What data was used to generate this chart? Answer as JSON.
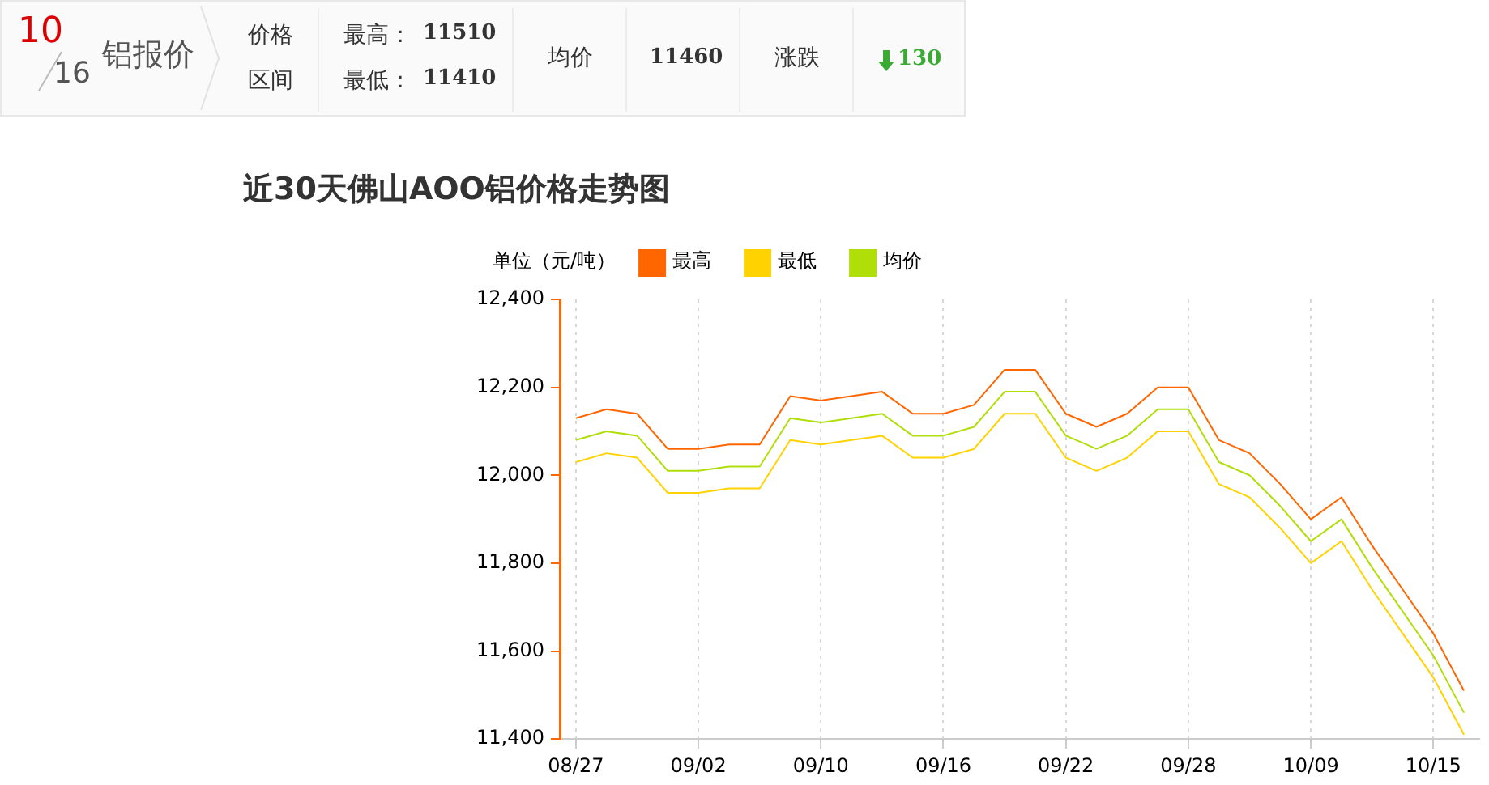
{
  "chart_data": {
    "type": "line",
    "title": "近30天佛山AOO铝价格走势图",
    "ylabel": "单位（元/吨）",
    "annotations": [
      "10",
      "16",
      "铝报价",
      "价格",
      "区间",
      "最高：",
      "11510",
      "最低：",
      "11410",
      "均价",
      "11460",
      "涨跌",
      "130"
    ],
    "categories": [
      "08/27",
      null,
      null,
      null,
      "09/02",
      null,
      null,
      null,
      "09/10",
      null,
      null,
      null,
      "09/16",
      null,
      null,
      null,
      "09/22",
      null,
      null,
      null,
      "09/28",
      null,
      null,
      null,
      "10/09",
      null,
      null,
      null,
      "10/15",
      null
    ],
    "series": [
      {
        "name": "最高",
        "color": "#ff6600",
        "values": [
          12130,
          12150,
          12140,
          12060,
          12060,
          12070,
          12070,
          12180,
          12170,
          12180,
          12190,
          12140,
          12140,
          12160,
          12240,
          12240,
          12140,
          12110,
          12140,
          12200,
          12200,
          12080,
          12050,
          11980,
          11900,
          11950,
          11840,
          11740,
          11640,
          11510
        ]
      },
      {
        "name": "最低",
        "color": "#ffd200",
        "values": [
          12030,
          12050,
          12040,
          11960,
          11960,
          11970,
          11970,
          12080,
          12070,
          12080,
          12090,
          12040,
          12040,
          12060,
          12140,
          12140,
          12040,
          12010,
          12040,
          12100,
          12100,
          11980,
          11950,
          11880,
          11800,
          11850,
          11740,
          11640,
          11540,
          11410
        ]
      },
      {
        "name": "均价",
        "color": "#b0de09",
        "values": [
          12080,
          12100,
          12090,
          12010,
          12010,
          12020,
          12020,
          12130,
          12120,
          12130,
          12140,
          12090,
          12090,
          12110,
          12190,
          12190,
          12090,
          12060,
          12090,
          12150,
          12150,
          12030,
          12000,
          11930,
          11850,
          11900,
          11790,
          11690,
          11590,
          11460
        ]
      }
    ],
    "ylim": [
      11400,
      12400
    ],
    "yticks": [
      {
        "value": 11400,
        "label": "11,400"
      },
      {
        "value": 11600,
        "label": "11,600"
      },
      {
        "value": 11800,
        "label": "11,800"
      },
      {
        "value": 12000,
        "label": "12,000"
      },
      {
        "value": 12200,
        "label": "12,200"
      },
      {
        "value": 12400,
        "label": "12,400"
      }
    ],
    "grid": "x",
    "legend": "top left",
    "marker": "none",
    "line_style": "solid"
  }
}
